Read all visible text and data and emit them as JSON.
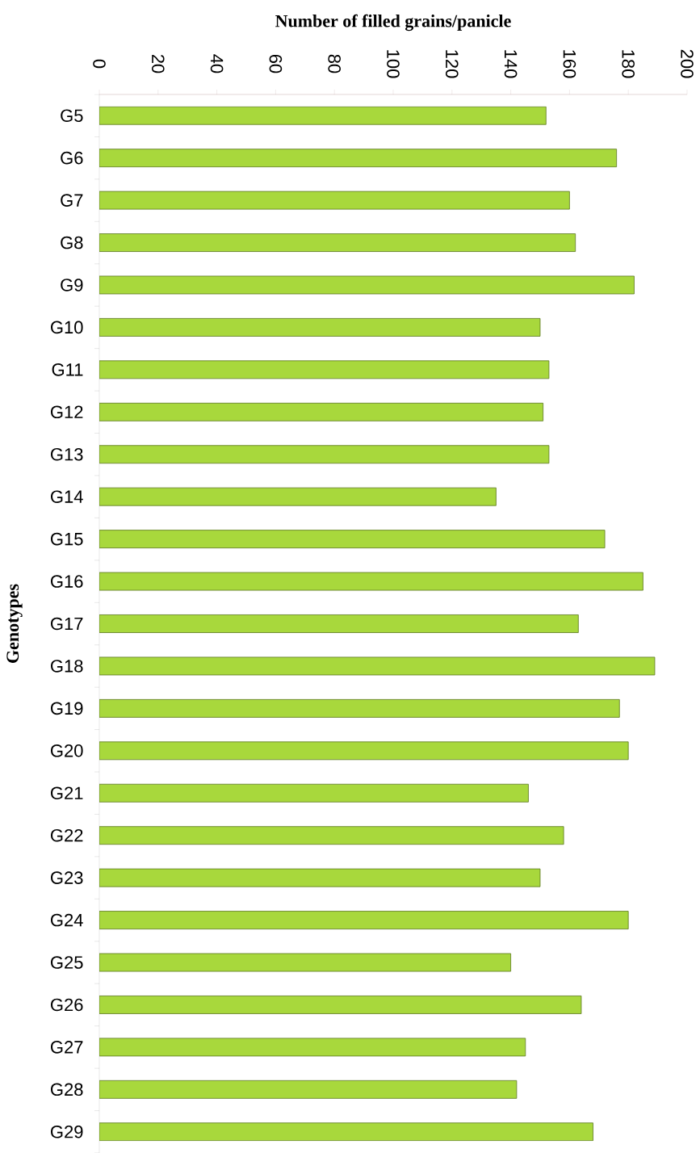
{
  "chart_data": {
    "type": "bar",
    "orientation": "horizontal",
    "xlabel": "Number of filled grains/panicle",
    "ylabel": "Genotypes",
    "categories": [
      "G5",
      "G6",
      "G7",
      "G8",
      "G9",
      "G10",
      "G11",
      "G12",
      "G13",
      "G14",
      "G15",
      "G16",
      "G17",
      "G18",
      "G19",
      "G20",
      "G21",
      "G22",
      "G23",
      "G24",
      "G25",
      "G26",
      "G27",
      "G28",
      "G29"
    ],
    "values": [
      152,
      176,
      160,
      162,
      182,
      150,
      153,
      151,
      153,
      135,
      172,
      185,
      163,
      189,
      177,
      180,
      146,
      158,
      150,
      180,
      140,
      164,
      145,
      142,
      168
    ],
    "color": "#a8d83c",
    "xlim": [
      0,
      200
    ],
    "xticks": [
      0,
      20,
      40,
      60,
      80,
      100,
      120,
      140,
      160,
      180,
      200
    ]
  }
}
